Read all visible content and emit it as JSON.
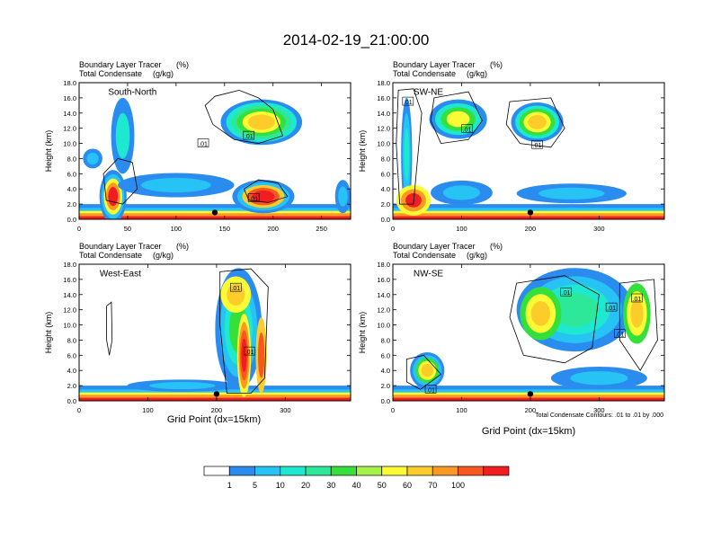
{
  "title": "2014-02-19_21:00:00",
  "panel_header": {
    "line1_name": "Boundary Layer Tracer",
    "line1_unit": "(%)",
    "line2_name": "Total Condensate",
    "line2_unit": "(g/kg)"
  },
  "xlabel": "Grid Point (dx=15km)",
  "contour_note": "Total Condensate Contours: .01 to .01 by .000",
  "colorbar": {
    "labels": [
      "1",
      "5",
      "10",
      "20",
      "30",
      "40",
      "50",
      "60",
      "70",
      "100"
    ],
    "colors": [
      "#ffffff",
      "#2b8cf0",
      "#27c3f5",
      "#1ee8d0",
      "#2ee89a",
      "#35e03a",
      "#a6f24a",
      "#fbfb35",
      "#fccd2a",
      "#fb9a22",
      "#f8571f",
      "#f11d22"
    ]
  },
  "chart_data": [
    {
      "type": "heatmap",
      "panel": "South-North",
      "ylabel": "Height (km)",
      "ylim": [
        0,
        18
      ],
      "yticks": [
        "0.0",
        "2.0",
        "4.0",
        "6.0",
        "8.0",
        "10.0",
        "12.0",
        "14.0",
        "16.0",
        "18.0"
      ],
      "xlim": [
        0,
        280
      ],
      "xticks": [
        "0",
        "50",
        "100",
        "150",
        "200",
        "250"
      ],
      "contour_labels": [
        ".01",
        ".01",
        ".01"
      ]
    },
    {
      "type": "heatmap",
      "panel": "SW-NE",
      "ylabel": "Height (km)",
      "ylim": [
        0,
        18
      ],
      "yticks": [
        "0.0",
        "2.0",
        "4.0",
        "6.0",
        "8.0",
        "10.0",
        "12.0",
        "14.0",
        "16.0",
        "18.0"
      ],
      "xlim": [
        0,
        395
      ],
      "xticks": [
        "0",
        "100",
        "200",
        "300"
      ],
      "contour_labels": [
        ".01",
        ".01",
        ".01"
      ]
    },
    {
      "type": "heatmap",
      "panel": "West-East",
      "ylabel": "Height (km)",
      "ylim": [
        0,
        18
      ],
      "yticks": [
        "0.0",
        "2.0",
        "4.0",
        "6.0",
        "8.0",
        "10.0",
        "12.0",
        "14.0",
        "16.0",
        "18.0"
      ],
      "xlim": [
        0,
        395
      ],
      "xticks": [
        "0",
        "100",
        "200",
        "300"
      ],
      "contour_labels": [
        ".01",
        ".01"
      ]
    },
    {
      "type": "heatmap",
      "panel": "NW-SE",
      "ylabel": "Height (km)",
      "ylim": [
        0,
        18
      ],
      "yticks": [
        "0.0",
        "2.0",
        "4.0",
        "6.0",
        "8.0",
        "10.0",
        "12.0",
        "14.0",
        "16.0",
        "18.0"
      ],
      "xlim": [
        0,
        395
      ],
      "xticks": [
        "0",
        "100",
        "200",
        "300"
      ],
      "contour_labels": [
        ".01",
        ".01",
        ".01",
        ".01",
        ".01"
      ]
    }
  ]
}
